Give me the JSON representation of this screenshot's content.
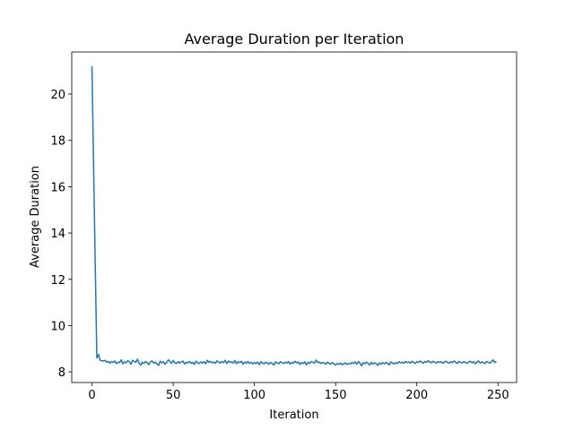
{
  "chart_data": {
    "type": "line",
    "title": "Average Duration per Iteration",
    "xlabel": "Iteration",
    "ylabel": "Average Duration",
    "x": [
      0,
      1,
      2,
      3,
      4,
      5,
      6,
      7,
      8,
      9,
      10,
      11,
      12,
      13,
      14,
      15,
      16,
      17,
      18,
      19,
      20,
      21,
      22,
      23,
      24,
      25,
      26,
      27,
      28,
      29,
      30,
      31,
      32,
      33,
      34,
      35,
      36,
      37,
      38,
      39,
      40,
      41,
      42,
      43,
      44,
      45,
      46,
      47,
      48,
      49,
      50,
      51,
      52,
      53,
      54,
      55,
      56,
      57,
      58,
      59,
      60,
      61,
      62,
      63,
      64,
      65,
      66,
      67,
      68,
      69,
      70,
      71,
      72,
      73,
      74,
      75,
      76,
      77,
      78,
      79,
      80,
      81,
      82,
      83,
      84,
      85,
      86,
      87,
      88,
      89,
      90,
      91,
      92,
      93,
      94,
      95,
      96,
      97,
      98,
      99,
      100,
      101,
      102,
      103,
      104,
      105,
      106,
      107,
      108,
      109,
      110,
      111,
      112,
      113,
      114,
      115,
      116,
      117,
      118,
      119,
      120,
      121,
      122,
      123,
      124,
      125,
      126,
      127,
      128,
      129,
      130,
      131,
      132,
      133,
      134,
      135,
      136,
      137,
      138,
      139,
      140,
      141,
      142,
      143,
      144,
      145,
      146,
      147,
      148,
      149,
      150,
      151,
      152,
      153,
      154,
      155,
      156,
      157,
      158,
      159,
      160,
      161,
      162,
      163,
      164,
      165,
      166,
      167,
      168,
      169,
      170,
      171,
      172,
      173,
      174,
      175,
      176,
      177,
      178,
      179,
      180,
      181,
      182,
      183,
      184,
      185,
      186,
      187,
      188,
      189,
      190,
      191,
      192,
      193,
      194,
      195,
      196,
      197,
      198,
      199,
      200,
      201,
      202,
      203,
      204,
      205,
      206,
      207,
      208,
      209,
      210,
      211,
      212,
      213,
      214,
      215,
      216,
      217,
      218,
      219,
      220,
      221,
      222,
      223,
      224,
      225,
      226,
      227,
      228,
      229,
      230,
      231,
      232,
      233,
      234,
      235,
      236,
      237,
      238,
      239,
      240,
      241,
      242,
      243,
      244,
      245,
      246,
      247,
      248,
      249
    ],
    "series": [
      {
        "name": "Average Duration",
        "color": "#1f77b4",
        "values": [
          21.2,
          16.9,
          12.7,
          8.6,
          8.75,
          8.5,
          8.48,
          8.47,
          8.5,
          8.42,
          8.45,
          8.38,
          8.44,
          8.41,
          8.47,
          8.36,
          8.42,
          8.4,
          8.52,
          8.35,
          8.43,
          8.39,
          8.48,
          8.44,
          8.33,
          8.5,
          8.46,
          8.41,
          8.55,
          8.37,
          8.29,
          8.42,
          8.36,
          8.45,
          8.4,
          8.31,
          8.44,
          8.47,
          8.38,
          8.42,
          8.35,
          8.28,
          8.46,
          8.39,
          8.44,
          8.33,
          8.41,
          8.52,
          8.45,
          8.37,
          8.49,
          8.4,
          8.36,
          8.44,
          8.38,
          8.43,
          8.47,
          8.34,
          8.42,
          8.39,
          8.45,
          8.37,
          8.41,
          8.32,
          8.46,
          8.4,
          8.36,
          8.43,
          8.38,
          8.44,
          8.35,
          8.5,
          8.41,
          8.46,
          8.39,
          8.43,
          8.37,
          8.48,
          8.42,
          8.38,
          8.45,
          8.4,
          8.5,
          8.36,
          8.47,
          8.41,
          8.43,
          8.38,
          8.49,
          8.35,
          8.44,
          8.4,
          8.46,
          8.33,
          8.42,
          8.38,
          8.45,
          8.37,
          8.41,
          8.34,
          8.4,
          8.36,
          8.43,
          8.31,
          8.44,
          8.39,
          8.35,
          8.42,
          8.38,
          8.33,
          8.41,
          8.37,
          8.29,
          8.43,
          8.39,
          8.35,
          8.44,
          8.4,
          8.36,
          8.42,
          8.38,
          8.45,
          8.34,
          8.41,
          8.37,
          8.46,
          8.39,
          8.43,
          8.32,
          8.4,
          8.36,
          8.44,
          8.3,
          8.41,
          8.37,
          8.45,
          8.42,
          8.38,
          8.51,
          8.4,
          8.43,
          8.36,
          8.41,
          8.38,
          8.34,
          8.42,
          8.37,
          8.33,
          8.4,
          8.35,
          8.3,
          8.36,
          8.33,
          8.38,
          8.31,
          8.35,
          8.39,
          8.32,
          8.37,
          8.34,
          8.41,
          8.36,
          8.43,
          8.33,
          8.45,
          8.38,
          8.26,
          8.4,
          8.35,
          8.42,
          8.37,
          8.3,
          8.41,
          8.34,
          8.39,
          8.36,
          8.28,
          8.38,
          8.33,
          8.4,
          8.35,
          8.41,
          8.37,
          8.3,
          8.43,
          8.38,
          8.34,
          8.4,
          8.36,
          8.44,
          8.39,
          8.42,
          8.37,
          8.45,
          8.4,
          8.43,
          8.38,
          8.46,
          8.41,
          8.36,
          8.44,
          8.4,
          8.47,
          8.42,
          8.38,
          8.45,
          8.41,
          8.48,
          8.43,
          8.39,
          8.46,
          8.42,
          8.38,
          8.45,
          8.4,
          8.44,
          8.37,
          8.43,
          8.46,
          8.41,
          8.38,
          8.44,
          8.4,
          8.47,
          8.42,
          8.36,
          8.45,
          8.41,
          8.39,
          8.44,
          8.4,
          8.37,
          8.43,
          8.46,
          8.39,
          8.44,
          8.35,
          8.42,
          8.47,
          8.38,
          8.43,
          8.4,
          8.36,
          8.45,
          8.41,
          8.38,
          8.44,
          8.52,
          8.4,
          8.45
        ]
      }
    ],
    "xlim": [
      -12.45,
      261.45
    ],
    "xticks": [
      0,
      50,
      100,
      150,
      200,
      250
    ],
    "ylim": [
      7.54,
      21.82
    ],
    "yticks": [
      8,
      10,
      12,
      14,
      16,
      18,
      20
    ],
    "grid": false
  }
}
